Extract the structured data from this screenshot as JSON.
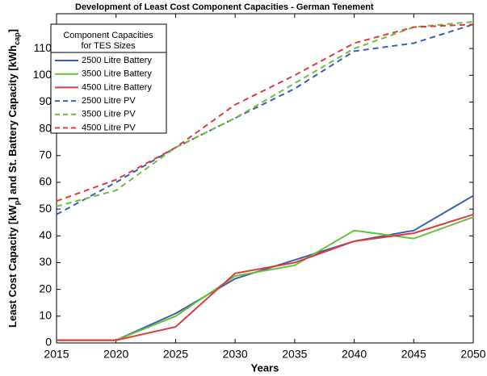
{
  "chart_data": {
    "type": "line",
    "title": "Development of Least Cost Component Capacities - German Tenement",
    "xlabel": "Years",
    "ylabel": [
      "Least Cost Capacity [kW",
      "p",
      "] and St. Battery Capacity [kWh",
      "cap",
      "]"
    ],
    "legend_title": [
      "Component Capacities",
      "for TES Sizes"
    ],
    "legend": "upper left",
    "x": [
      2015,
      2020,
      2025,
      2030,
      2035,
      2040,
      2045,
      2050
    ],
    "xlim": [
      2015,
      2050
    ],
    "xticks": [
      2015,
      2020,
      2025,
      2030,
      2035,
      2040,
      2045,
      2050
    ],
    "ylim": [
      0,
      123
    ],
    "yticks": [
      0,
      10,
      20,
      30,
      40,
      50,
      60,
      70,
      80,
      90,
      100,
      110
    ],
    "grid": false,
    "series": [
      {
        "name": "2500 Litre Battery",
        "color": "#3a5fb0",
        "dashed": false,
        "values": [
          1,
          1,
          11,
          24,
          31,
          38,
          42,
          55
        ]
      },
      {
        "name": "3500 Litre Battery",
        "color": "#6abf3a",
        "dashed": false,
        "values": [
          1,
          1,
          10,
          25,
          29,
          42,
          39,
          47
        ]
      },
      {
        "name": "4500 Litre Battery",
        "color": "#e0393a",
        "dashed": false,
        "values": [
          1,
          1,
          6,
          26,
          30,
          38,
          41,
          48
        ]
      },
      {
        "name": "2500 Litre PV",
        "color": "#3a5fb0",
        "dashed": true,
        "values": [
          48,
          60,
          73,
          84,
          95,
          109,
          112,
          119
        ]
      },
      {
        "name": "3500 Litre PV",
        "color": "#6abf3a",
        "dashed": true,
        "values": [
          51,
          57,
          73,
          84,
          97,
          110,
          118,
          120
        ]
      },
      {
        "name": "4500 Litre PV",
        "color": "#e0393a",
        "dashed": true,
        "values": [
          53,
          61,
          73,
          89,
          100,
          112,
          118,
          119
        ]
      }
    ]
  }
}
